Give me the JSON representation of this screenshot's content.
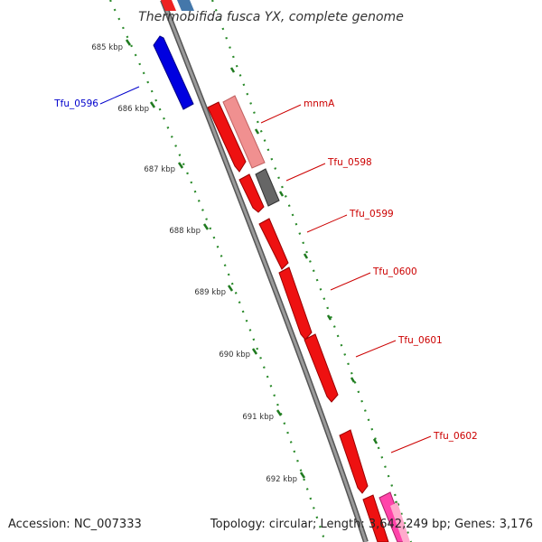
{
  "title": "Thermobifida fusca YX, complete genome",
  "footer": {
    "accession": "Accession: NC_007333",
    "topology": "Topology: circular; Length: 3,642,249 bp; Genes: 3,176"
  },
  "ticks": [
    "685 kbp",
    "686 kbp",
    "687 kbp",
    "688 kbp",
    "689 kbp",
    "690 kbp",
    "691 kbp",
    "692 kbp"
  ],
  "genes": [
    {
      "label": "Tfu_0596",
      "color": "#0000dd"
    },
    {
      "label": "mnmA",
      "color": "#cc0000"
    },
    {
      "label": "Tfu_0598",
      "color": "#cc0000"
    },
    {
      "label": "Tfu_0599",
      "color": "#cc0000"
    },
    {
      "label": "Tfu_0600",
      "color": "#cc0000"
    },
    {
      "label": "Tfu_0601",
      "color": "#cc0000"
    },
    {
      "label": "Tfu_0602",
      "color": "#cc0000"
    }
  ],
  "colors": {
    "backbone": "#888888",
    "forward_gene": "#ee0000",
    "reverse_gene": "#0000ee",
    "rna_gene": "#f08080",
    "other_feature": "#666666",
    "tick_dots": "#228822"
  }
}
